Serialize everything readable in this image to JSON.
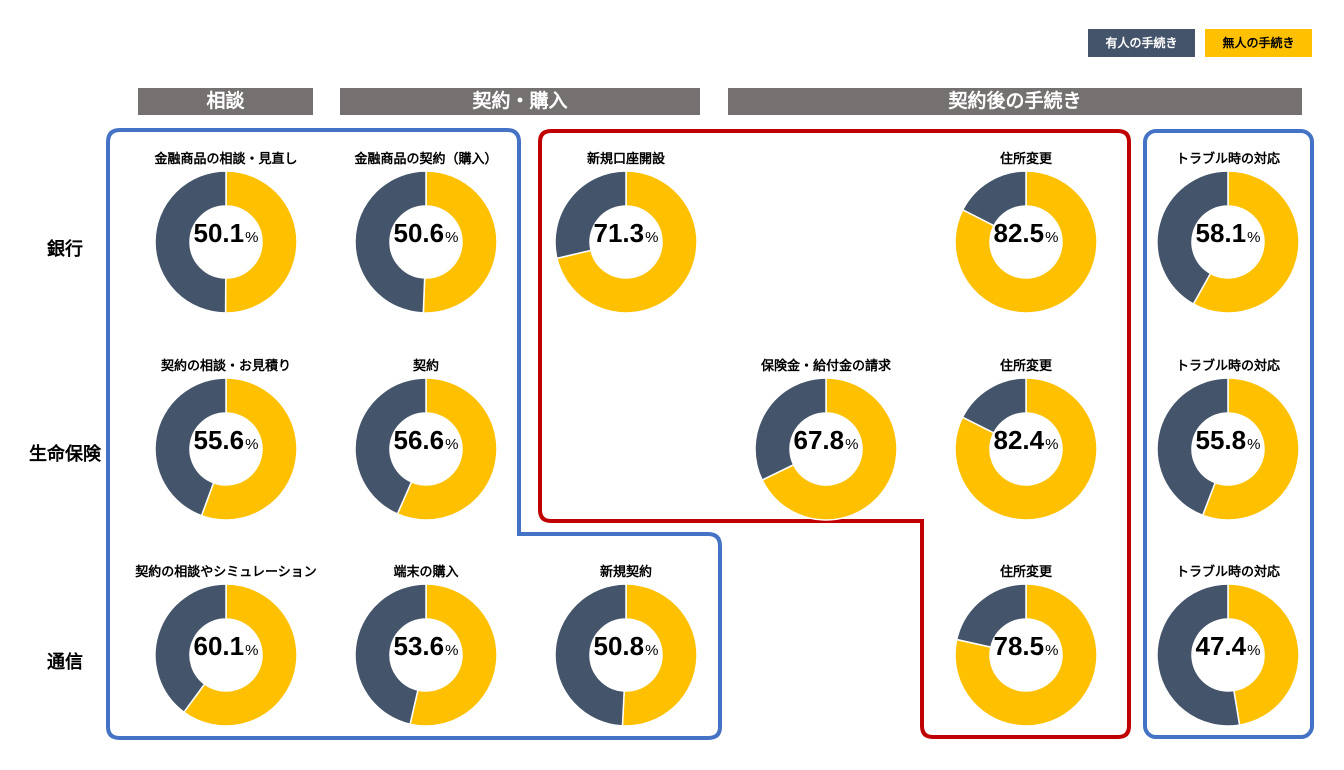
{
  "colors": {
    "staffed": "#44546a",
    "unstaffed": "#ffc000",
    "header": "#767171",
    "blue_frame": "#4472c4",
    "red_frame": "#c00000"
  },
  "legend": {
    "staffed": "有人の手続き",
    "unstaffed": "無人の手続き"
  },
  "headers": {
    "consultation": "相談",
    "contract": "契約・購入",
    "after": "契約後の手続き"
  },
  "rows": {
    "bank": "銀行",
    "life": "生命保険",
    "telecom": "通信"
  },
  "chart_data": {
    "type": "pie",
    "unit": "%",
    "series": [
      {
        "name": "無人の手続き",
        "color": "#ffc000"
      },
      {
        "name": "有人の手続き",
        "color": "#44546a"
      }
    ],
    "items": [
      {
        "row": "銀行",
        "label": "金融商品の相談・見直し",
        "value": 50.1
      },
      {
        "row": "銀行",
        "label": "金融商品の契約（購入）",
        "value": 50.6
      },
      {
        "row": "銀行",
        "label": "新規口座開設",
        "value": 71.3
      },
      {
        "row": "銀行",
        "label": "住所変更",
        "value": 82.5
      },
      {
        "row": "銀行",
        "label": "トラブル時の対応",
        "value": 58.1
      },
      {
        "row": "生命保険",
        "label": "契約の相談・お見積り",
        "value": 55.6
      },
      {
        "row": "生命保険",
        "label": "契約",
        "value": 56.6
      },
      {
        "row": "生命保険",
        "label": "保険金・給付金の請求",
        "value": 67.8
      },
      {
        "row": "生命保険",
        "label": "住所変更",
        "value": 82.4
      },
      {
        "row": "生命保険",
        "label": "トラブル時の対応",
        "value": 55.8
      },
      {
        "row": "通信",
        "label": "契約の相談やシミュレーション",
        "value": 60.1
      },
      {
        "row": "通信",
        "label": "端末の購入",
        "value": 53.6
      },
      {
        "row": "通信",
        "label": "新規契約",
        "value": 50.8
      },
      {
        "row": "通信",
        "label": "住所変更",
        "value": 78.5
      },
      {
        "row": "通信",
        "label": "トラブル時の対応",
        "value": 47.4
      }
    ]
  }
}
